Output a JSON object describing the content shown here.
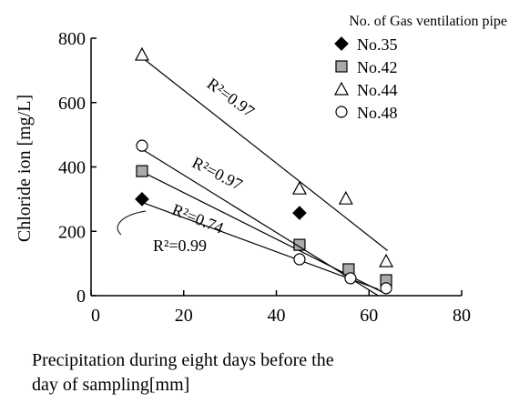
{
  "chart_data": {
    "type": "scatter",
    "y_label": "Chloride ion [mg/L]",
    "x_label": [
      "Precipitation during eight days before the",
      "day of sampling[mm]"
    ],
    "legend_title": "No. of Gas ventilation pipe",
    "xlim": [
      0,
      80
    ],
    "xticks": [
      0,
      20,
      40,
      60,
      80
    ],
    "ylim": [
      0,
      800
    ],
    "yticks": [
      0,
      200,
      400,
      600,
      800
    ],
    "series": [
      {
        "name": "No.35",
        "marker": "diamond",
        "color": "#000000",
        "x": [
          11,
          45
        ],
        "values": [
          300,
          257
        ],
        "trend": {
          "x": [
            11,
            62
          ],
          "values": [
            290,
            20
          ]
        },
        "r2_label": "R²=0.99"
      },
      {
        "name": "No.42",
        "marker": "square",
        "color": "#aaaaaa",
        "x": [
          11,
          45,
          55.6,
          63.7
        ],
        "values": [
          387,
          158,
          82,
          48
        ],
        "trend": {
          "x": [
            11,
            63
          ],
          "values": [
            385,
            10
          ]
        },
        "r2_label": "R²=0.74"
      },
      {
        "name": "No.44",
        "marker": "triangle",
        "color": "#ffffff",
        "x": [
          11,
          45,
          55,
          63.7
        ],
        "values": [
          749,
          333,
          302,
          107
        ],
        "trend": {
          "x": [
            11,
            64
          ],
          "values": [
            740,
            140
          ]
        },
        "r2_label": "R²=0.97"
      },
      {
        "name": "No.48",
        "marker": "circle",
        "color": "#ffffff",
        "x": [
          11,
          45,
          56,
          63.7
        ],
        "values": [
          466,
          113,
          54,
          23
        ],
        "trend": {
          "x": [
            11,
            62
          ],
          "values": [
            455,
            0
          ]
        },
        "r2_label": "R²=0.97"
      }
    ]
  }
}
